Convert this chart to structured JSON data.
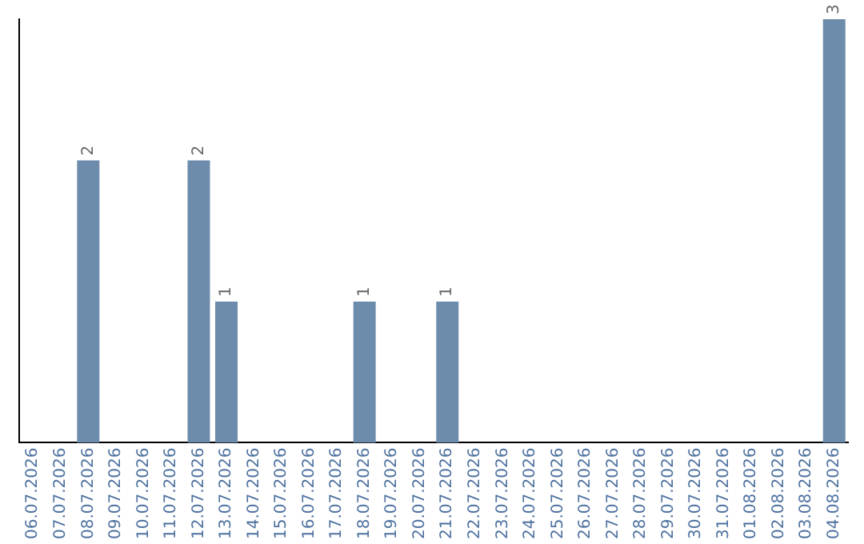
{
  "chart_data": {
    "type": "bar",
    "categories": [
      "06.07.2026",
      "07.07.2026",
      "08.07.2026",
      "09.07.2026",
      "10.07.2026",
      "11.07.2026",
      "12.07.2026",
      "13.07.2026",
      "14.07.2026",
      "15.07.2026",
      "16.07.2026",
      "17.07.2026",
      "18.07.2026",
      "19.07.2026",
      "20.07.2026",
      "21.07.2026",
      "22.07.2026",
      "23.07.2026",
      "24.07.2026",
      "25.07.2026",
      "26.07.2026",
      "27.07.2026",
      "28.07.2026",
      "29.07.2026",
      "30.07.2026",
      "31.07.2026",
      "01.08.2026",
      "02.08.2026",
      "03.08.2026",
      "04.08.2026"
    ],
    "values": [
      0,
      0,
      2,
      0,
      0,
      0,
      2,
      1,
      0,
      0,
      0,
      0,
      1,
      0,
      0,
      1,
      0,
      0,
      0,
      0,
      0,
      0,
      0,
      0,
      0,
      0,
      0,
      0,
      0,
      3
    ],
    "value_labels": [
      null,
      null,
      "2",
      null,
      null,
      null,
      "2",
      "1",
      null,
      null,
      null,
      null,
      "1",
      null,
      null,
      "1",
      null,
      null,
      null,
      null,
      null,
      null,
      null,
      null,
      null,
      null,
      null,
      null,
      null,
      "3"
    ],
    "color": "#6d8cab",
    "grid": false,
    "legend": false,
    "tick_labels": "x"
  }
}
